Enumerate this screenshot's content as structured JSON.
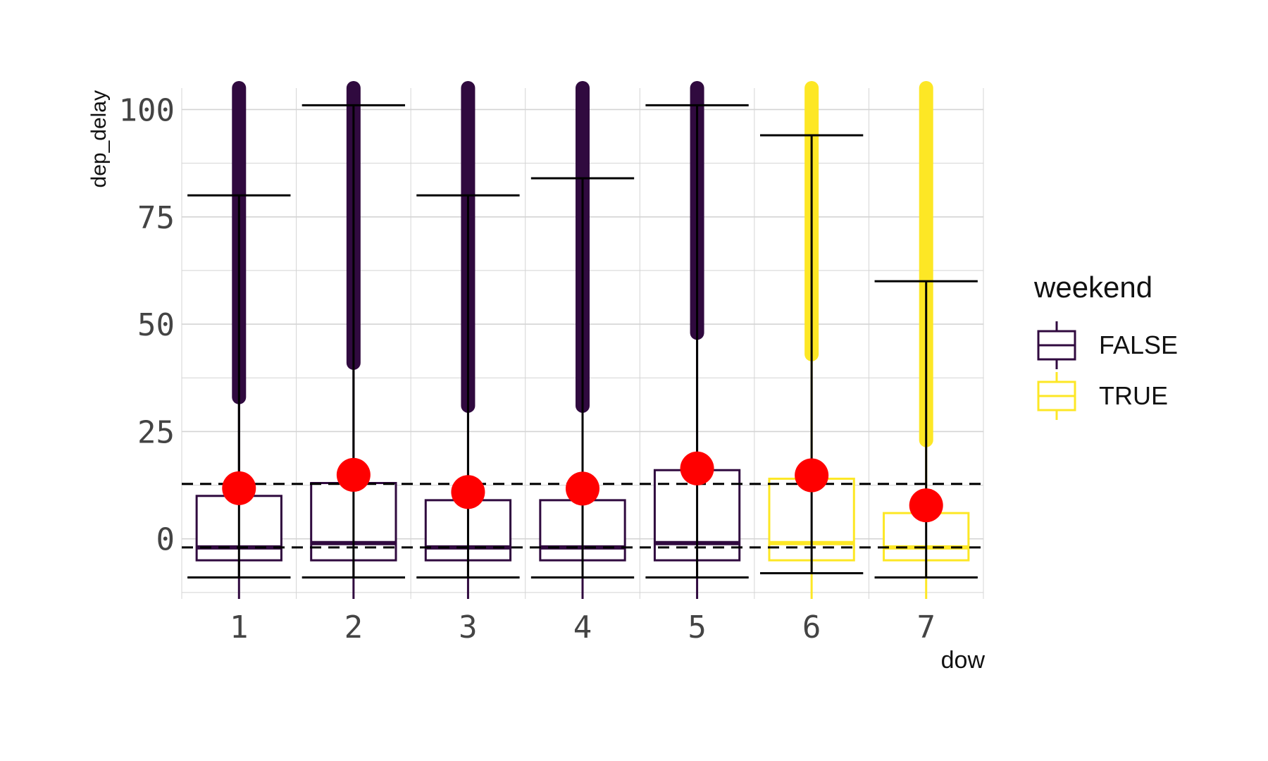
{
  "chart_data": {
    "type": "boxplot",
    "xlabel": "dow",
    "ylabel": "dep_delay",
    "categories": [
      "1",
      "2",
      "3",
      "4",
      "5",
      "6",
      "7"
    ],
    "ylim": [
      -14,
      105
    ],
    "yticks": [
      0,
      25,
      50,
      75,
      100
    ],
    "grid": true,
    "legend": {
      "title": "weekend",
      "placement": "right",
      "entries": [
        {
          "label": "FALSE",
          "color": "#300a3f"
        },
        {
          "label": "TRUE",
          "color": "#fde725"
        }
      ]
    },
    "boxes": [
      {
        "x": "1",
        "group": "FALSE",
        "q1": -5,
        "median": -2,
        "q3": 10,
        "whisker_low": -9,
        "whisker_high": 80,
        "mean": 11.8,
        "outliers_from": 33
      },
      {
        "x": "2",
        "group": "FALSE",
        "q1": -5,
        "median": -1,
        "q3": 13,
        "whisker_low": -9,
        "whisker_high": 101,
        "mean": 14.9,
        "outliers_from": 41
      },
      {
        "x": "3",
        "group": "FALSE",
        "q1": -5,
        "median": -2,
        "q3": 9,
        "whisker_low": -9,
        "whisker_high": 80,
        "mean": 10.9,
        "outliers_from": 31
      },
      {
        "x": "4",
        "group": "FALSE",
        "q1": -5,
        "median": -2,
        "q3": 9,
        "whisker_low": -9,
        "whisker_high": 84,
        "mean": 11.7,
        "outliers_from": 31
      },
      {
        "x": "5",
        "group": "FALSE",
        "q1": -5,
        "median": -1,
        "q3": 16,
        "whisker_low": -9,
        "whisker_high": 101,
        "mean": 16.4,
        "outliers_from": 48
      },
      {
        "x": "6",
        "group": "TRUE",
        "q1": -5,
        "median": -1,
        "q3": 14,
        "whisker_low": -8,
        "whisker_high": 94,
        "mean": 14.8,
        "outliers_from": 43
      },
      {
        "x": "7",
        "group": "TRUE",
        "q1": -5,
        "median": -2,
        "q3": 6,
        "whisker_low": -9,
        "whisker_high": 60,
        "mean": 7.8,
        "outliers_from": 23
      }
    ],
    "hlines": [
      {
        "y": 12.8,
        "style": "dashed"
      },
      {
        "y": -2,
        "style": "dashed"
      }
    ],
    "mean_color": "#ff0000",
    "errorbar_color": "#000000"
  }
}
